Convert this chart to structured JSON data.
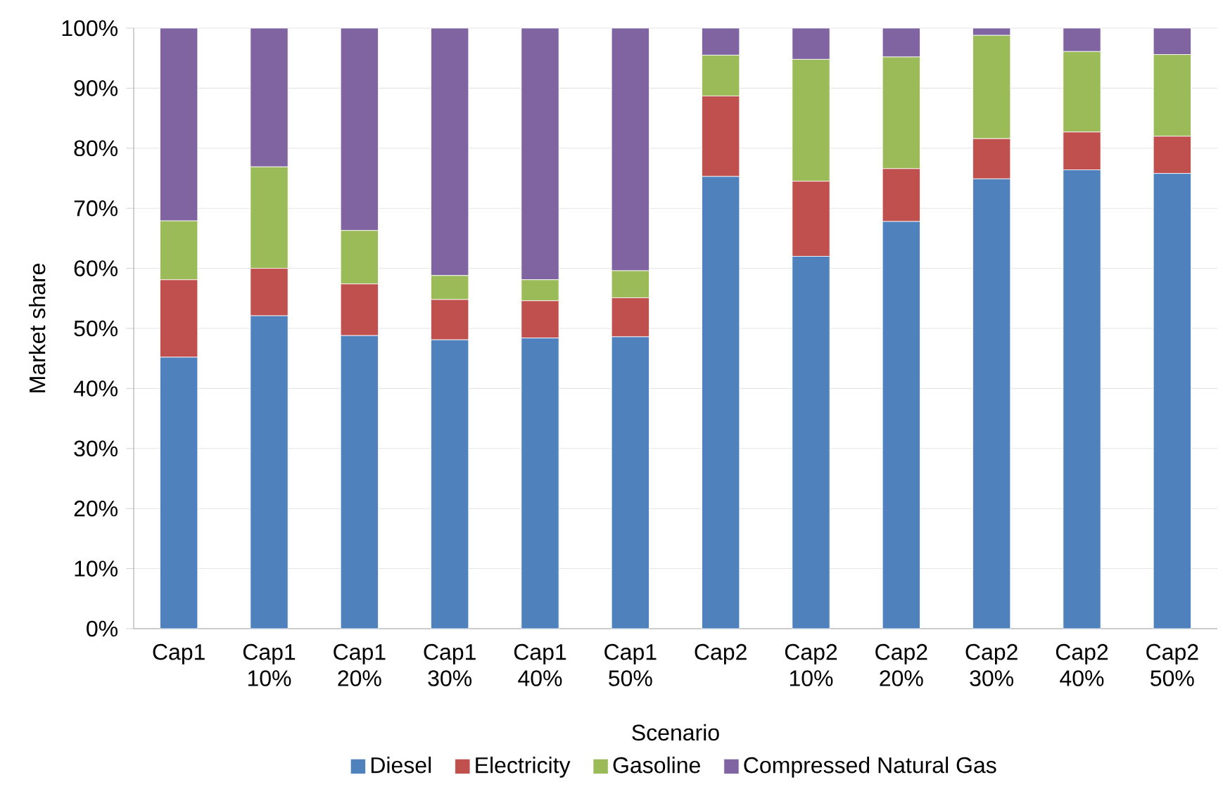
{
  "chart_data": {
    "type": "bar",
    "stacked": true,
    "xlabel": "Scenario",
    "ylabel": "Market share",
    "categories": [
      "Cap1",
      "Cap1 10%",
      "Cap1 20%",
      "Cap1 30%",
      "Cap1 40%",
      "Cap1 50%",
      "Cap2",
      "Cap2 10%",
      "Cap2 20%",
      "Cap2 30%",
      "Cap2 40%",
      "Cap2 50%"
    ],
    "series": [
      {
        "name": "Diesel",
        "color": "#4f81bd",
        "values": [
          45.2,
          52.1,
          48.8,
          48.1,
          48.4,
          48.6,
          75.3,
          62.0,
          67.8,
          74.9,
          76.4,
          75.8
        ]
      },
      {
        "name": "Electricity",
        "color": "#c0504d",
        "values": [
          12.9,
          7.9,
          8.6,
          6.7,
          6.2,
          6.5,
          13.4,
          12.5,
          8.8,
          6.7,
          6.3,
          6.2
        ]
      },
      {
        "name": "Gasoline",
        "color": "#9bbb59",
        "values": [
          9.8,
          16.9,
          8.9,
          4.0,
          3.5,
          4.5,
          6.8,
          20.3,
          18.6,
          17.2,
          13.4,
          13.6
        ]
      },
      {
        "name": "Compressed Natural Gas",
        "color": "#8064a2",
        "values": [
          32.1,
          23.1,
          33.7,
          41.2,
          41.9,
          40.4,
          4.5,
          5.2,
          4.8,
          1.2,
          3.9,
          4.4
        ]
      }
    ],
    "ylim": [
      0,
      100
    ],
    "yticks": [
      {
        "value": 0,
        "label": "0%"
      },
      {
        "value": 10,
        "label": "10%"
      },
      {
        "value": 20,
        "label": "20%"
      },
      {
        "value": 30,
        "label": "30%"
      },
      {
        "value": 40,
        "label": "40%"
      },
      {
        "value": 50,
        "label": "50%"
      },
      {
        "value": 60,
        "label": "60%"
      },
      {
        "value": 70,
        "label": "70%"
      },
      {
        "value": 80,
        "label": "80%"
      },
      {
        "value": 90,
        "label": "90%"
      },
      {
        "value": 100,
        "label": "100%"
      }
    ],
    "grid": "y",
    "legend": "bottom"
  }
}
